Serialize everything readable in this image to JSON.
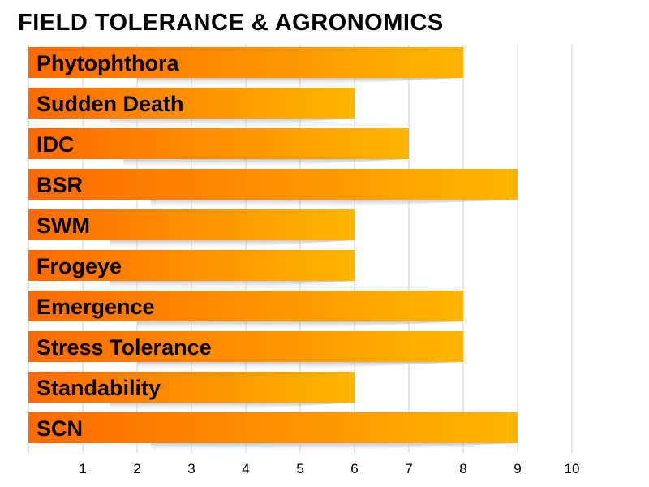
{
  "chart_data": {
    "type": "bar",
    "orientation": "horizontal",
    "title": "FIELD TOLERANCE & AGRONOMICS",
    "categories": [
      "Phytophthora",
      "Sudden Death",
      "IDC",
      "BSR",
      "SWM",
      "Frogeye",
      "Emergence",
      "Stress Tolerance",
      "Standability",
      "SCN"
    ],
    "values": [
      8,
      6,
      7,
      9,
      6,
      6,
      8,
      8,
      6,
      9
    ],
    "xlim": [
      0,
      10
    ],
    "xticks": [
      1,
      2,
      3,
      4,
      5,
      6,
      7,
      8,
      9,
      10
    ],
    "grid": "vertical",
    "legend": "none",
    "colors": {
      "bar_start": "#ff6a00",
      "bar_end": "#fdb700",
      "grid": "#d0d0d0"
    }
  }
}
